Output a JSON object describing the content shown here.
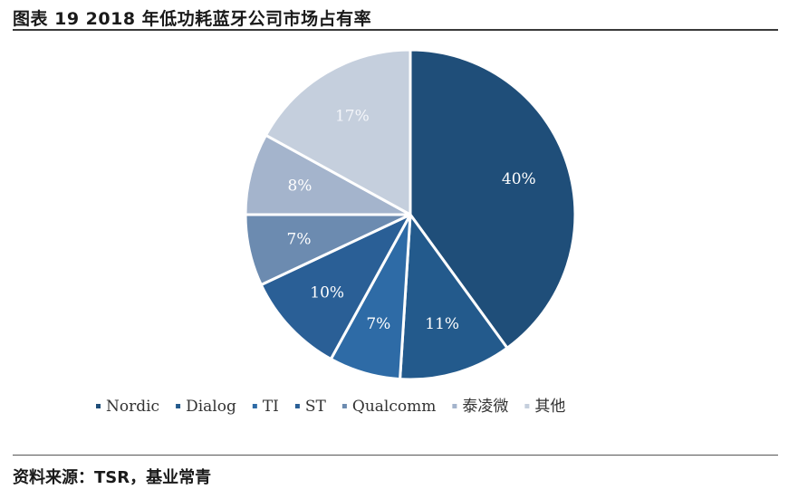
{
  "header": {
    "title": "图表 19  2018 年低功耗蓝牙公司市场占有率"
  },
  "footer": {
    "source": "资料来源：TSR，基业常青"
  },
  "chart_data": {
    "type": "pie",
    "title": "",
    "slices": [
      {
        "name": "Nordic",
        "value": 40,
        "label": "40%",
        "color": "#1f4e79"
      },
      {
        "name": "Dialog",
        "value": 11,
        "label": "11%",
        "color": "#235a8c"
      },
      {
        "name": "TI",
        "value": 7,
        "label": "7%",
        "color": "#2e6ba6"
      },
      {
        "name": "ST",
        "value": 10,
        "label": "10%",
        "color": "#2a5f96"
      },
      {
        "name": "Qualcomm",
        "value": 7,
        "label": "7%",
        "color": "#6c8bb0"
      },
      {
        "name": "泰凌微",
        "value": 8,
        "label": "8%",
        "color": "#a4b4cc"
      },
      {
        "name": "其他",
        "value": 17,
        "label": "17%",
        "color": "#c5cfdd"
      }
    ],
    "legend_order": [
      "Nordic",
      "Dialog",
      "TI",
      "ST",
      "Qualcomm",
      "泰凌微",
      "其他"
    ],
    "legend_position": "bottom",
    "start_angle_deg": 0,
    "direction": "clockwise",
    "colors": {
      "Nordic": "#1f4e79",
      "Dialog": "#235a8c",
      "TI": "#2e6ba6",
      "ST": "#2a5f96",
      "Qualcomm": "#6c8bb0",
      "泰凌微": "#a4b4cc",
      "其他": "#c5cfdd"
    }
  }
}
